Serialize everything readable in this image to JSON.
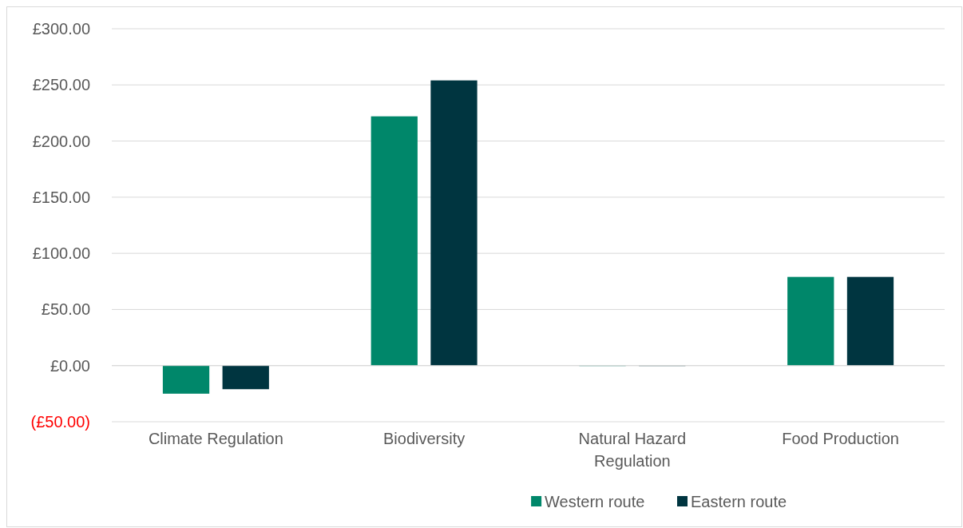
{
  "chart_data": {
    "type": "bar",
    "categories": [
      "Climate Regulation",
      "Biodiversity",
      "Natural Hazard Regulation",
      "Food Production"
    ],
    "series": [
      {
        "name": "Western route",
        "color": "#00876a",
        "values": [
          -25,
          222,
          0,
          79
        ]
      },
      {
        "name": "Eastern route",
        "color": "#003540",
        "values": [
          -21,
          254,
          0,
          79
        ]
      }
    ],
    "ylim": [
      -50,
      300
    ],
    "yticks": [
      {
        "value": -50,
        "label": "(£50.00)"
      },
      {
        "value": 0,
        "label": "£0.00"
      },
      {
        "value": 50,
        "label": "£50.00"
      },
      {
        "value": 100,
        "label": "£100.00"
      },
      {
        "value": 150,
        "label": "£150.00"
      },
      {
        "value": 200,
        "label": "£200.00"
      },
      {
        "value": 250,
        "label": "£250.00"
      },
      {
        "value": 300,
        "label": "£300.00"
      }
    ],
    "grid": "y",
    "legend": "bottom"
  }
}
